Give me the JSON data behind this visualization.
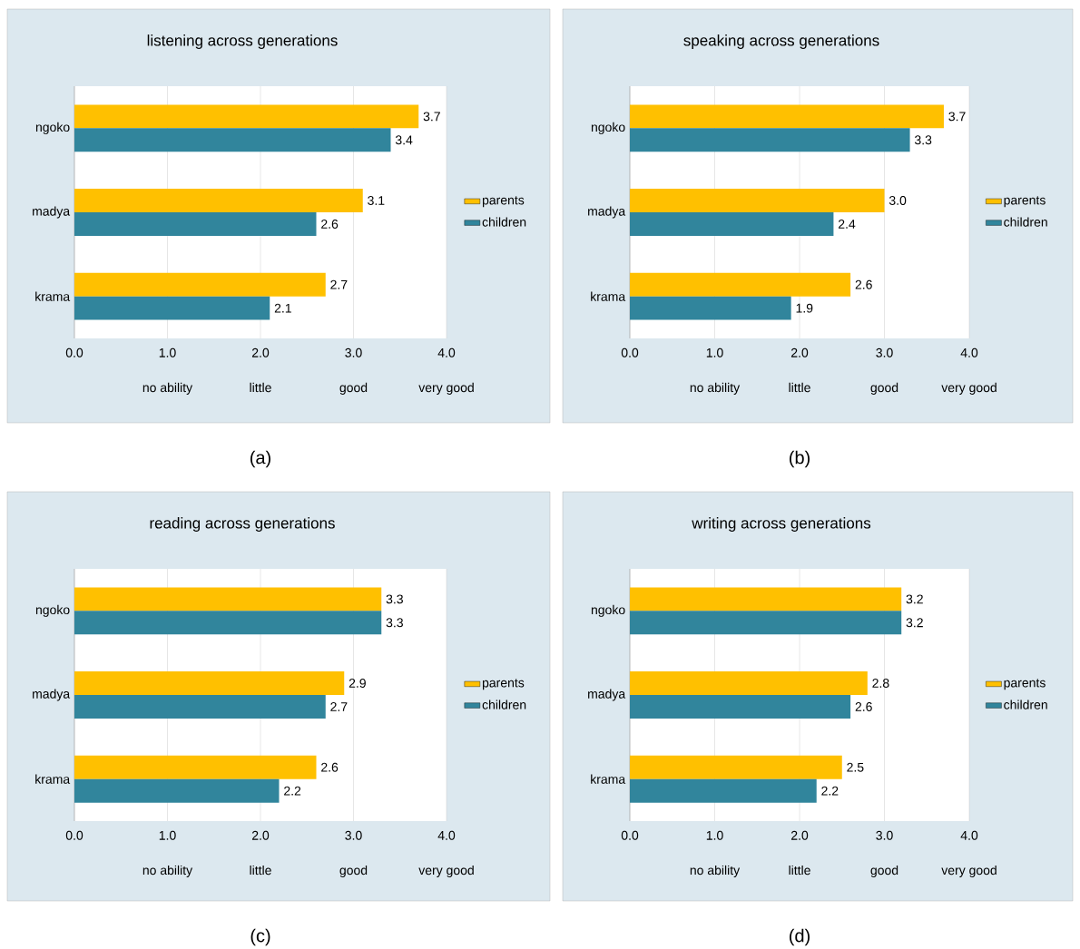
{
  "chart_data": [
    {
      "type": "bar",
      "orientation": "horizontal",
      "title": "listening across generations",
      "categories": [
        "ngoko",
        "madya",
        "krama"
      ],
      "series": [
        {
          "name": "parents",
          "color": "#ffc000",
          "values": [
            3.7,
            3.1,
            2.7
          ],
          "value_labels": [
            "3.7",
            "3.1",
            "2.7"
          ]
        },
        {
          "name": "children",
          "color": "#31859c",
          "values": [
            3.4,
            2.6,
            2.1
          ],
          "value_labels": [
            "3.4",
            "2.6",
            "2.1"
          ]
        }
      ],
      "xlim": [
        0,
        4
      ],
      "xticks": [
        {
          "value": 0,
          "label": "0.0"
        },
        {
          "value": 1,
          "label": "1.0"
        },
        {
          "value": 2,
          "label": "2.0"
        },
        {
          "value": 3,
          "label": "3.0"
        },
        {
          "value": 4,
          "label": "4.0"
        }
      ],
      "grid": "x",
      "legend": "right",
      "annotations": [
        "no ability",
        "little",
        "good",
        "very good",
        "(a)"
      ]
    },
    {
      "type": "bar",
      "orientation": "horizontal",
      "title": "speaking across generations",
      "categories": [
        "ngoko",
        "madya",
        "krama"
      ],
      "series": [
        {
          "name": "parents",
          "color": "#ffc000",
          "values": [
            3.7,
            3.0,
            2.6
          ],
          "value_labels": [
            "3.7",
            "3.0",
            "2.6"
          ]
        },
        {
          "name": "children",
          "color": "#31859c",
          "values": [
            3.3,
            2.4,
            1.9
          ],
          "value_labels": [
            "3.3",
            "2.4",
            "1.9"
          ]
        }
      ],
      "xlim": [
        0,
        4
      ],
      "xticks": [
        {
          "value": 0,
          "label": "0.0"
        },
        {
          "value": 1,
          "label": "1.0"
        },
        {
          "value": 2,
          "label": "2.0"
        },
        {
          "value": 3,
          "label": "3.0"
        },
        {
          "value": 4,
          "label": "4.0"
        }
      ],
      "grid": "x",
      "legend": "right",
      "annotations": [
        "no ability",
        "little",
        "good",
        "very good",
        "(b)"
      ]
    },
    {
      "type": "bar",
      "orientation": "horizontal",
      "title": "reading across generations",
      "categories": [
        "ngoko",
        "madya",
        "krama"
      ],
      "series": [
        {
          "name": "parents",
          "color": "#ffc000",
          "values": [
            3.3,
            2.9,
            2.6
          ],
          "value_labels": [
            "3.3",
            "2.9",
            "2.6"
          ]
        },
        {
          "name": "children",
          "color": "#31859c",
          "values": [
            3.3,
            2.7,
            2.2
          ],
          "value_labels": [
            "3.3",
            "2.7",
            "2.2"
          ]
        }
      ],
      "xlim": [
        0,
        4
      ],
      "xticks": [
        {
          "value": 0,
          "label": "0.0"
        },
        {
          "value": 1,
          "label": "1.0"
        },
        {
          "value": 2,
          "label": "2.0"
        },
        {
          "value": 3,
          "label": "3.0"
        },
        {
          "value": 4,
          "label": "4.0"
        }
      ],
      "grid": "x",
      "legend": "right",
      "annotations": [
        "no ability",
        "little",
        "good",
        "very good",
        "(c)"
      ]
    },
    {
      "type": "bar",
      "orientation": "horizontal",
      "title": "writing across generations",
      "categories": [
        "ngoko",
        "madya",
        "krama"
      ],
      "series": [
        {
          "name": "parents",
          "color": "#ffc000",
          "values": [
            3.2,
            2.8,
            2.5
          ],
          "value_labels": [
            "3.2",
            "2.8",
            "2.5"
          ]
        },
        {
          "name": "children",
          "color": "#31859c",
          "values": [
            3.2,
            2.6,
            2.2
          ],
          "value_labels": [
            "3.2",
            "2.6",
            "2.2"
          ]
        }
      ],
      "xlim": [
        0,
        4
      ],
      "xticks": [
        {
          "value": 0,
          "label": "0.0"
        },
        {
          "value": 1,
          "label": "1.0"
        },
        {
          "value": 2,
          "label": "2.0"
        },
        {
          "value": 3,
          "label": "3.0"
        },
        {
          "value": 4,
          "label": "4.0"
        }
      ],
      "grid": "x",
      "legend": "right",
      "annotations": [
        "no ability",
        "little",
        "good",
        "very good",
        "(d)"
      ]
    }
  ]
}
